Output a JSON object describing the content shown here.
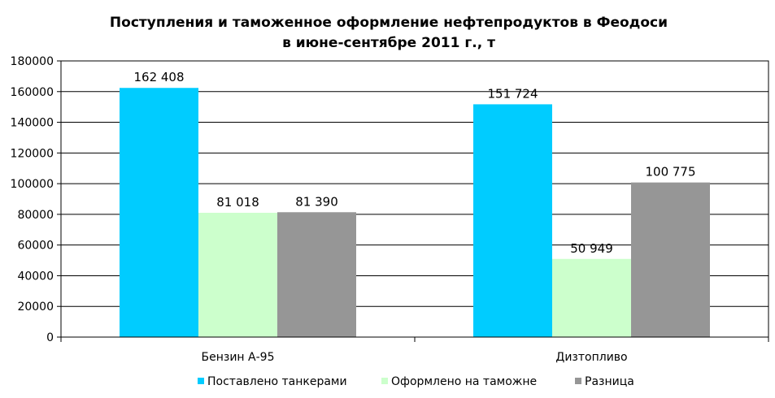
{
  "chart_data": {
    "type": "bar",
    "title_line1": "Поступления и таможенное оформление нефтепродуктов в Феодоси",
    "title_line2": "в июне-сентябре 2011 г., т",
    "categories": [
      "Бензин А-95",
      "Дизтопливо"
    ],
    "series": [
      {
        "name": "Поставлено танкерами",
        "color": "#00CCFF",
        "values": [
          162408,
          151724
        ],
        "labels": [
          "162 408",
          "151 724"
        ]
      },
      {
        "name": "Оформлено на таможне",
        "color": "#CCFFCC",
        "values": [
          81018,
          50949
        ],
        "labels": [
          "81 018",
          "50 949"
        ]
      },
      {
        "name": "Разница",
        "color": "#969696",
        "values": [
          81390,
          100775
        ],
        "labels": [
          "81 390",
          "100 775"
        ]
      }
    ],
    "ylim": [
      0,
      180000
    ],
    "y_ticks": [
      "0",
      "20000",
      "40000",
      "60000",
      "80000",
      "100000",
      "120000",
      "140000",
      "160000",
      "180000"
    ],
    "grid": true,
    "legend_position": "bottom",
    "xlabel": "",
    "ylabel": ""
  }
}
